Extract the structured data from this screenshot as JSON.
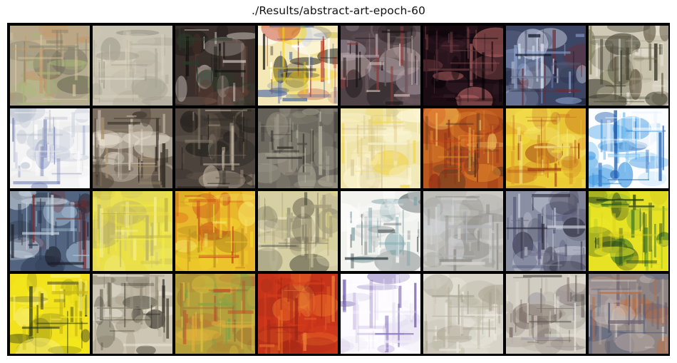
{
  "title": "./Results/abstract-art-epoch-60",
  "grid": {
    "rows": 4,
    "cols": 8
  },
  "tiles": [
    {
      "name": "r1c1",
      "bg": "#b7ad92",
      "palette": [
        "#8d8770",
        "#d8c79d",
        "#6e6a58",
        "#a9b47a",
        "#c29b6e"
      ]
    },
    {
      "name": "r1c2",
      "bg": "#c9c3b3",
      "palette": [
        "#e0d9c8",
        "#a8a393",
        "#b7b19e",
        "#8f8b7e",
        "#d1cab6"
      ]
    },
    {
      "name": "r1c3",
      "bg": "#3b2f2b",
      "palette": [
        "#101010",
        "#8b7a6f",
        "#d7d0c8",
        "#5f3e33",
        "#2b3c2a"
      ]
    },
    {
      "name": "r1c4",
      "bg": "#f4e8b6",
      "palette": [
        "#111111",
        "#f5d417",
        "#ffffff",
        "#3f5fa8",
        "#c63d2a"
      ]
    },
    {
      "name": "r1c5",
      "bg": "#4f4348",
      "palette": [
        "#1c1517",
        "#b7a6b0",
        "#6f5c62",
        "#d7c0b9",
        "#8d3a3a"
      ]
    },
    {
      "name": "r1c6",
      "bg": "#1a0c12",
      "palette": [
        "#050205",
        "#3c1f2a",
        "#6a3940",
        "#c06a6a",
        "#2b1420"
      ]
    },
    {
      "name": "r1c7",
      "bg": "#3d4564",
      "palette": [
        "#141a2c",
        "#8ba0c9",
        "#d8e0ef",
        "#6b2c35",
        "#58607d"
      ]
    },
    {
      "name": "r1c8",
      "bg": "#cfc9b6",
      "palette": [
        "#eeeadd",
        "#3e3d2f",
        "#7c7a58",
        "#a9a58b",
        "#5c4f3c"
      ]
    },
    {
      "name": "r2c1",
      "bg": "#f4f4f4",
      "palette": [
        "#ffffff",
        "#c9cfdc",
        "#6a79b5",
        "#aeb6c7",
        "#e7e7e7"
      ]
    },
    {
      "name": "r2c2",
      "bg": "#7b6f61",
      "palette": [
        "#e8e0d2",
        "#2d2620",
        "#a8916f",
        "#cbbfae",
        "#4f4438"
      ]
    },
    {
      "name": "r2c3",
      "bg": "#4c443c",
      "palette": [
        "#1b1814",
        "#8c7e6d",
        "#c7b9a5",
        "#66594c",
        "#2e2a26"
      ]
    },
    {
      "name": "r2c4",
      "bg": "#6d6960",
      "palette": [
        "#4a4842",
        "#9c9786",
        "#b8b3a0",
        "#2c2b27",
        "#7f7b6c"
      ]
    },
    {
      "name": "r2c5",
      "bg": "#efe5ab",
      "palette": [
        "#f7f1cf",
        "#f1d54a",
        "#e3cf86",
        "#d6c79b",
        "#fff9de"
      ]
    },
    {
      "name": "r2c6",
      "bg": "#b9571f",
      "palette": [
        "#d7431b",
        "#8f2a14",
        "#e58b2c",
        "#5a3622",
        "#f0c15a"
      ]
    },
    {
      "name": "r2c7",
      "bg": "#e8c534",
      "palette": [
        "#f4dd3a",
        "#c96e1d",
        "#f7ec84",
        "#a23f16",
        "#e4a32a"
      ]
    },
    {
      "name": "r2c8",
      "bg": "#fbfdff",
      "palette": [
        "#ffffff",
        "#2e8fe0",
        "#7cc1f0",
        "#1f5fb0",
        "#e8f3fb"
      ]
    },
    {
      "name": "r3c1",
      "bg": "#52647f",
      "palette": [
        "#2e3a52",
        "#a7c0d7",
        "#7d2a2a",
        "#cad5df",
        "#1c1f2a"
      ]
    },
    {
      "name": "r3c2",
      "bg": "#e9df48",
      "palette": [
        "#f3ea42",
        "#d9d178",
        "#b8b070",
        "#f7f39a",
        "#c2b646"
      ]
    },
    {
      "name": "r3c3",
      "bg": "#e9b72a",
      "palette": [
        "#f1d42b",
        "#e07a1b",
        "#c84319",
        "#f6e86a",
        "#b8901e"
      ]
    },
    {
      "name": "r3c4",
      "bg": "#d6cfa3",
      "palette": [
        "#eee6c4",
        "#77705c",
        "#a59c7b",
        "#e2d885",
        "#4b4a3e"
      ]
    },
    {
      "name": "r3c5",
      "bg": "#f2f2ef",
      "palette": [
        "#ffffff",
        "#2f3c3f",
        "#7aa2a8",
        "#c2c8c7",
        "#4d5a58"
      ]
    },
    {
      "name": "r3c6",
      "bg": "#bfbdb7",
      "palette": [
        "#d8d6d1",
        "#a3a29d",
        "#b3b6b9",
        "#cfd2d4",
        "#8e8d88"
      ]
    },
    {
      "name": "r3c7",
      "bg": "#8a8fa3",
      "palette": [
        "#d2d6df",
        "#2c2b3c",
        "#56587a",
        "#a9acb9",
        "#6c6c82"
      ]
    },
    {
      "name": "r3c8",
      "bg": "#e8e224",
      "palette": [
        "#f4ef27",
        "#2b6a22",
        "#9bbb2d",
        "#d8d11f",
        "#1f3b1a"
      ]
    },
    {
      "name": "r4c1",
      "bg": "#f1e21d",
      "palette": [
        "#f7ea1b",
        "#1e2a14",
        "#c8b617",
        "#f9f07b",
        "#5c5a23"
      ]
    },
    {
      "name": "r4c2",
      "bg": "#cdc6b4",
      "palette": [
        "#ece7da",
        "#4b4639",
        "#8d8570",
        "#b3ab96",
        "#2a2720"
      ]
    },
    {
      "name": "r4c3",
      "bg": "#b5a13c",
      "palette": [
        "#d9c33c",
        "#c0512a",
        "#7fa146",
        "#e8b23a",
        "#9e6a2f"
      ]
    },
    {
      "name": "r4c4",
      "bg": "#c8341a",
      "palette": [
        "#d83f1c",
        "#9f2414",
        "#e66b27",
        "#b13019",
        "#f08a3a"
      ]
    },
    {
      "name": "r4c5",
      "bg": "#fdfbff",
      "palette": [
        "#ffffff",
        "#c7b7e0",
        "#6a54a8",
        "#f1ecf7",
        "#e2dcee"
      ]
    },
    {
      "name": "r4c6",
      "bg": "#d8d4c8",
      "palette": [
        "#e9e6dc",
        "#b7b1a1",
        "#c8c3b3",
        "#a8a28f",
        "#f0eee6"
      ]
    },
    {
      "name": "r4c7",
      "bg": "#d2cdc2",
      "palette": [
        "#ebe8e0",
        "#5e5a57",
        "#9c97a3",
        "#b7b1a4",
        "#7d6f69"
      ]
    },
    {
      "name": "r4c8",
      "bg": "#8e8584",
      "palette": [
        "#b7a8a5",
        "#4d5c7b",
        "#c06d3c",
        "#d9cfc7",
        "#6e6170"
      ]
    }
  ]
}
